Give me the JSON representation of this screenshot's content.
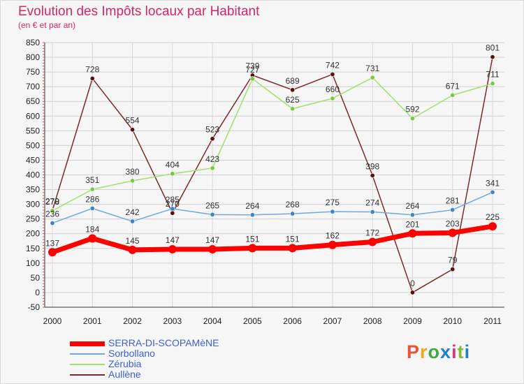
{
  "header": {
    "title": "Evolution des Impôts locaux par Habitant",
    "subtitle": "(en € et par an)"
  },
  "logo": {
    "text": "Proxiti",
    "colors": [
      "#e8543a",
      "#f2a71b",
      "#3fa94a",
      "#1d7fd0",
      "#d23b7a",
      "#7bbf33",
      "#1d7fd0"
    ]
  },
  "chart_data": {
    "type": "line",
    "title": "Evolution des Impôts locaux par Habitant",
    "subtitle": "(en € et par an)",
    "xlabel": "",
    "ylabel": "",
    "categories": [
      "2000",
      "2001",
      "2002",
      "2003",
      "2004",
      "2005",
      "2006",
      "2007",
      "2008",
      "2009",
      "2010",
      "2011"
    ],
    "ylim": [
      -50,
      850
    ],
    "yticks": [
      -50,
      0,
      50,
      100,
      150,
      200,
      250,
      300,
      350,
      400,
      450,
      500,
      550,
      600,
      650,
      700,
      750,
      800,
      850
    ],
    "grid": true,
    "legend_position": "bottom-left",
    "series": [
      {
        "name": "SERRA-DI-SCOPAMèNE",
        "color": "#ff0000",
        "marker": "#ff0000",
        "values": [
          137,
          184,
          145,
          147,
          147,
          151,
          151,
          162,
          172,
          201,
          203,
          225
        ]
      },
      {
        "name": "Sorbollano",
        "color": "#6fa8dc",
        "marker": "#3d85c6",
        "values": [
          236,
          286,
          242,
          285,
          265,
          264,
          268,
          275,
          274,
          264,
          281,
          341
        ]
      },
      {
        "name": "Zérubia",
        "color": "#9fe06a",
        "marker": "#7ac943",
        "values": [
          278,
          351,
          380,
          404,
          423,
          727,
          625,
          660,
          731,
          592,
          671,
          711
        ]
      },
      {
        "name": "Aullène",
        "color": "#7a2a2a",
        "marker": "#5a1010",
        "values": [
          279,
          728,
          554,
          270,
          523,
          739,
          689,
          742,
          398,
          0,
          79,
          801
        ]
      }
    ]
  }
}
